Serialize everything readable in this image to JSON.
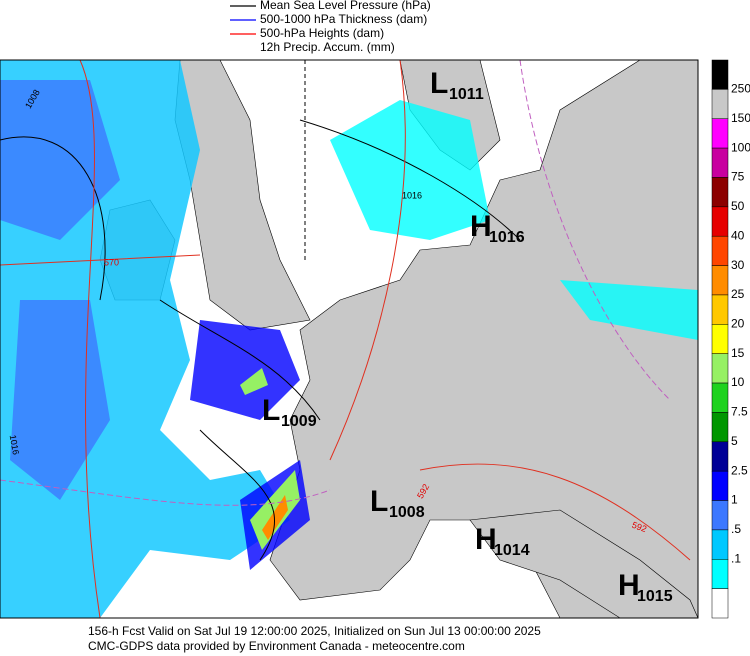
{
  "legend": [
    {
      "label": "Mean Sea Level Pressure (hPa)",
      "color": "#000000"
    },
    {
      "label": "500-1000 hPa Thickness (dam)",
      "color": "#0000ff"
    },
    {
      "label": "500-hPa Heights (dam)",
      "color": "#ff0000"
    },
    {
      "label": "12h Precip. Accum. (mm)"
    }
  ],
  "systems": [
    {
      "letter": "L",
      "value": "1011"
    },
    {
      "letter": "H",
      "value": "1016"
    },
    {
      "letter": "L",
      "value": "1009"
    },
    {
      "letter": "L",
      "value": "1008"
    },
    {
      "letter": "H",
      "value": "1014"
    },
    {
      "letter": "H",
      "value": "1015"
    }
  ],
  "contour_labels": [
    "1008",
    "1016",
    "570",
    "1016",
    "592",
    "592"
  ],
  "colorbar": {
    "colors": [
      "#000000",
      "#c8c8c8",
      "#ff00ff",
      "#c800a0",
      "#8c0000",
      "#e60000",
      "#ff4600",
      "#ff8c00",
      "#ffc800",
      "#ffff00",
      "#96f064",
      "#1ed21e",
      "#009600",
      "#000096",
      "#0000ff",
      "#3c78ff",
      "#00c8ff",
      "#00ffff",
      "#ffffff"
    ],
    "labels": [
      "250",
      "150",
      "100",
      "75",
      "50",
      "40",
      "30",
      "25",
      "20",
      "15",
      "10",
      "7.5",
      "5",
      "2.5",
      "1",
      ".5",
      ".1"
    ]
  },
  "footer": [
    "156-h Fcst Valid on Sat Jul 19 12:00:00 2025, Initialized on Sun Jul 13 00:00:00 2025",
    "CMC-GDPS data provided by Environment Canada - meteocentre.com"
  ]
}
